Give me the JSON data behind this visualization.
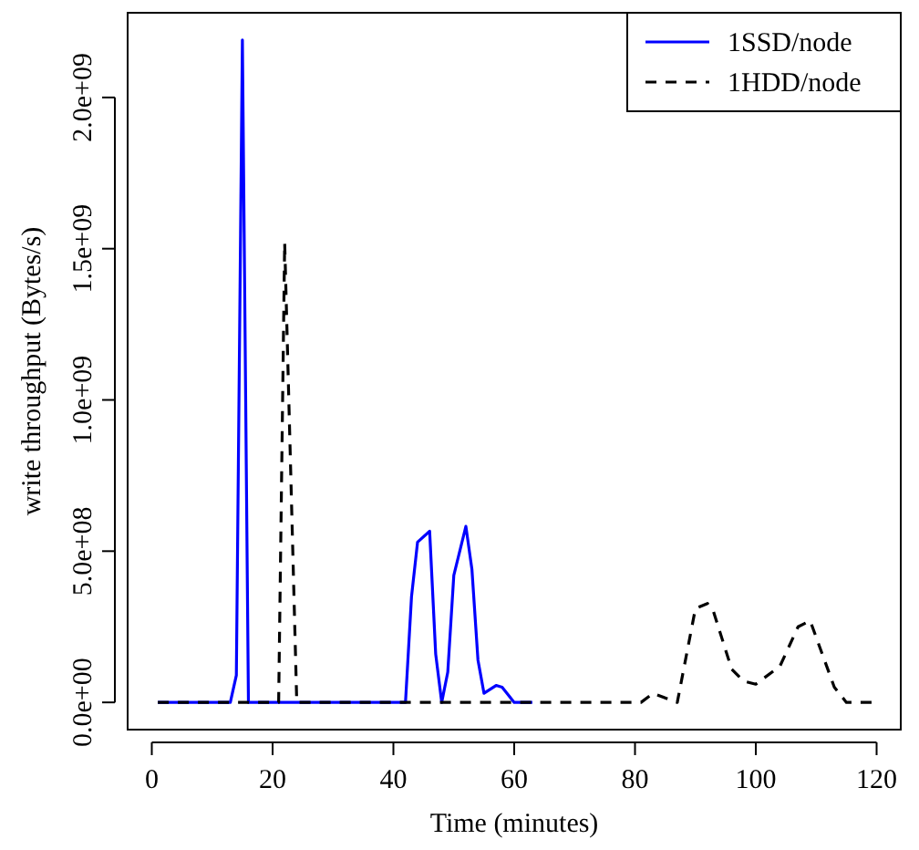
{
  "chart_data": {
    "type": "line",
    "xlabel": "Time (minutes)",
    "ylabel": "write throughput (Bytes/s)",
    "xlim": [
      -4,
      124
    ],
    "xticks": [
      0,
      20,
      40,
      60,
      80,
      100,
      120
    ],
    "ylim": [
      -90000000,
      2280000000
    ],
    "yticks": [
      {
        "value": 0,
        "label": "0.0e+00"
      },
      {
        "value": 500000000,
        "label": "5.0e+08"
      },
      {
        "value": 1000000000,
        "label": "1.0e+09"
      },
      {
        "value": 1500000000,
        "label": "1.5e+09"
      },
      {
        "value": 2000000000,
        "label": "2.0e+09"
      }
    ],
    "legend": "top right",
    "grid": false,
    "series": [
      {
        "name": "1SSD/node",
        "color": "#0000ff",
        "line_style": "solid",
        "x": [
          1,
          13,
          14,
          15,
          16,
          42,
          43,
          44,
          46,
          47,
          48,
          49,
          50,
          52,
          53,
          54,
          55,
          57,
          58,
          60,
          63
        ],
        "values": [
          0,
          0,
          90000000,
          2190000000,
          0,
          0,
          350000000,
          530000000,
          566000000,
          160000000,
          0,
          100000000,
          420000000,
          582000000,
          440000000,
          140000000,
          30000000,
          56000000,
          50000000,
          0,
          0
        ]
      },
      {
        "name": "1HDD/node",
        "color": "#000000",
        "line_style": "dashed",
        "x": [
          1,
          21,
          22,
          24,
          81,
          83,
          87,
          90,
          92,
          93,
          96,
          98,
          100,
          104,
          107,
          109,
          113,
          115,
          120
        ],
        "values": [
          0,
          0,
          1520000000,
          0,
          0,
          30000000,
          0,
          310000000,
          327000000,
          300000000,
          110000000,
          70000000,
          60000000,
          120000000,
          250000000,
          270000000,
          50000000,
          0,
          0
        ]
      }
    ]
  }
}
